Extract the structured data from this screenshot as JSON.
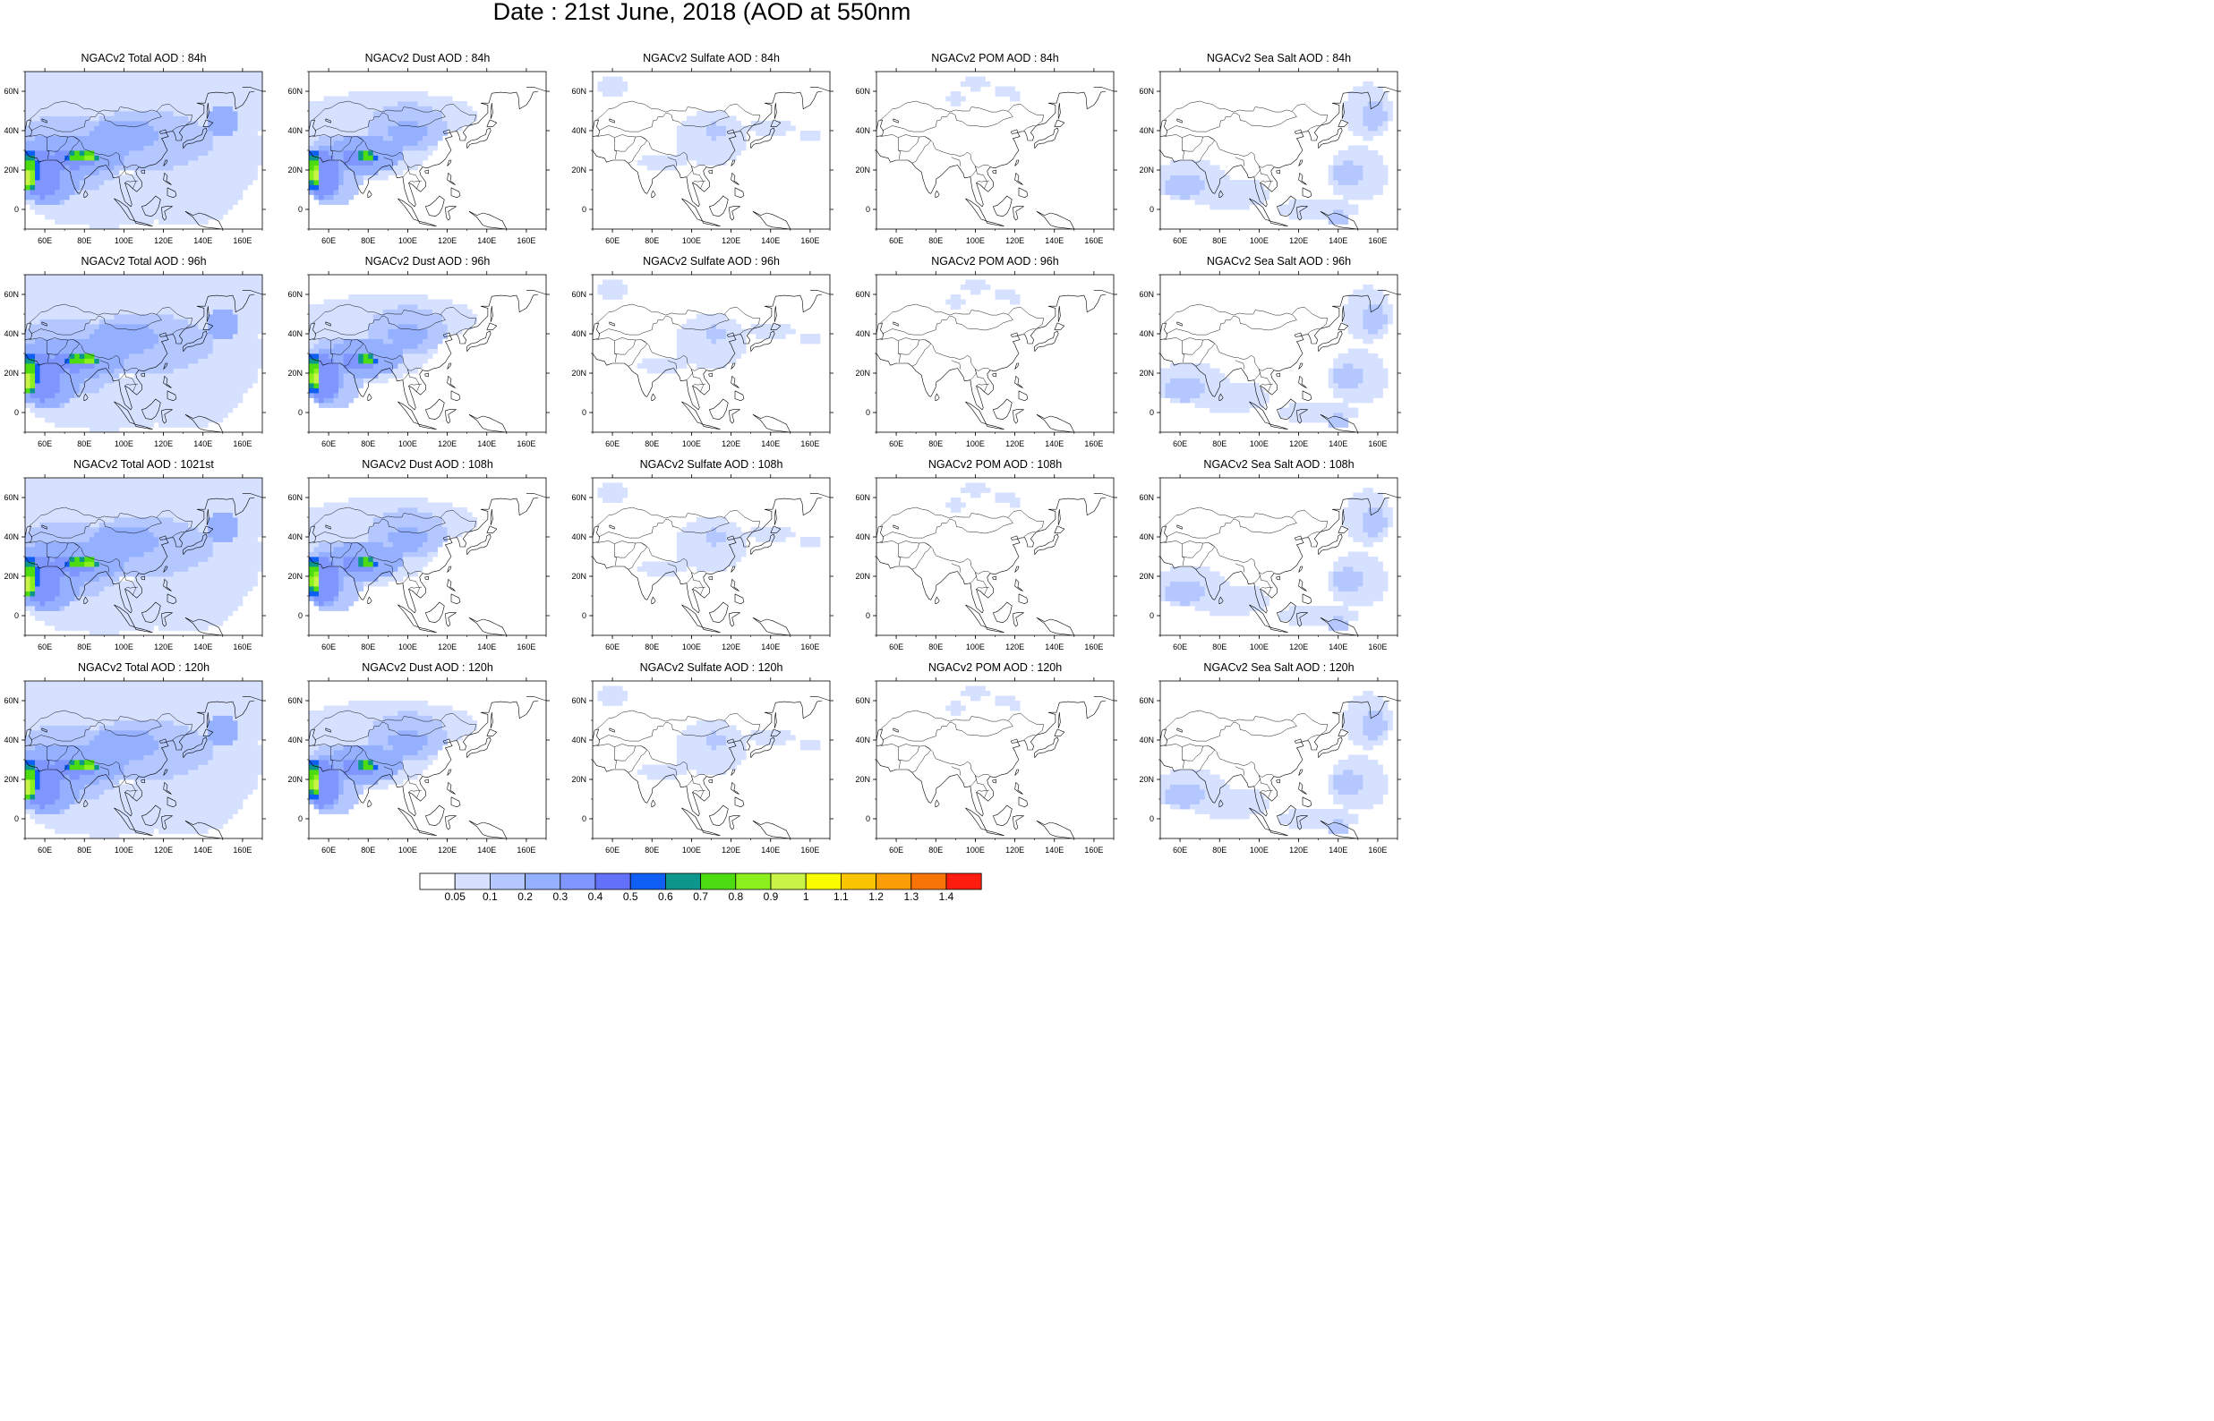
{
  "title": "Date : 21st June, 2018 (AOD at 550nm",
  "x_tick_labels": [
    "60E",
    "80E",
    "100E",
    "120E",
    "140E",
    "160E"
  ],
  "y_tick_labels": [
    "60N",
    "40N",
    "20N",
    "0"
  ],
  "colorbar": {
    "labels": [
      "0.05",
      "0.1",
      "0.2",
      "0.3",
      "0.4",
      "0.5",
      "0.6",
      "0.7",
      "0.8",
      "0.9",
      "1",
      "1.1",
      "1.2",
      "1.3",
      "1.4"
    ],
    "colors": [
      "#ffffff",
      "#d6e1ff",
      "#b4c8ff",
      "#95b0ff",
      "#7f96ff",
      "#6370f8",
      "#0f5ff5",
      "#0d968c",
      "#4cdc11",
      "#8cef1e",
      "#c8f448",
      "#fafc00",
      "#f9c402",
      "#f99e04",
      "#f97406",
      "#fd1c0e"
    ]
  },
  "panels": [
    {
      "title": "NGACv2 Total AOD : 84h",
      "variable": "total"
    },
    {
      "title": "NGACv2 Dust AOD : 84h",
      "variable": "dust"
    },
    {
      "title": "NGACv2 Sulfate AOD : 84h",
      "variable": "sulfate"
    },
    {
      "title": "NGACv2 POM AOD : 84h",
      "variable": "pom"
    },
    {
      "title": "NGACv2 Sea Salt AOD : 84h",
      "variable": "seasalt"
    },
    {
      "title": "NGACv2 Total AOD : 96h",
      "variable": "total"
    },
    {
      "title": "NGACv2 Dust AOD : 96h",
      "variable": "dust"
    },
    {
      "title": "NGACv2 Sulfate AOD : 96h",
      "variable": "sulfate"
    },
    {
      "title": "NGACv2 POM AOD : 96h",
      "variable": "pom"
    },
    {
      "title": "NGACv2 Sea Salt AOD : 96h",
      "variable": "seasalt"
    },
    {
      "title": "NGACv2 Total AOD : 1021st",
      "variable": "total"
    },
    {
      "title": "NGACv2 Dust AOD : 108h",
      "variable": "dust"
    },
    {
      "title": "NGACv2 Sulfate AOD : 108h",
      "variable": "sulfate"
    },
    {
      "title": "NGACv2 POM AOD : 108h",
      "variable": "pom"
    },
    {
      "title": "NGACv2 Sea Salt AOD : 108h",
      "variable": "seasalt"
    },
    {
      "title": "NGACv2 Total AOD : 120h",
      "variable": "total"
    },
    {
      "title": "NGACv2 Dust AOD : 120h",
      "variable": "dust"
    },
    {
      "title": "NGACv2 Sulfate AOD : 120h",
      "variable": "sulfate"
    },
    {
      "title": "NGACv2 POM AOD : 120h",
      "variable": "pom"
    },
    {
      "title": "NGACv2 Sea Salt  AOD : 120h",
      "variable": "seasalt"
    }
  ]
}
